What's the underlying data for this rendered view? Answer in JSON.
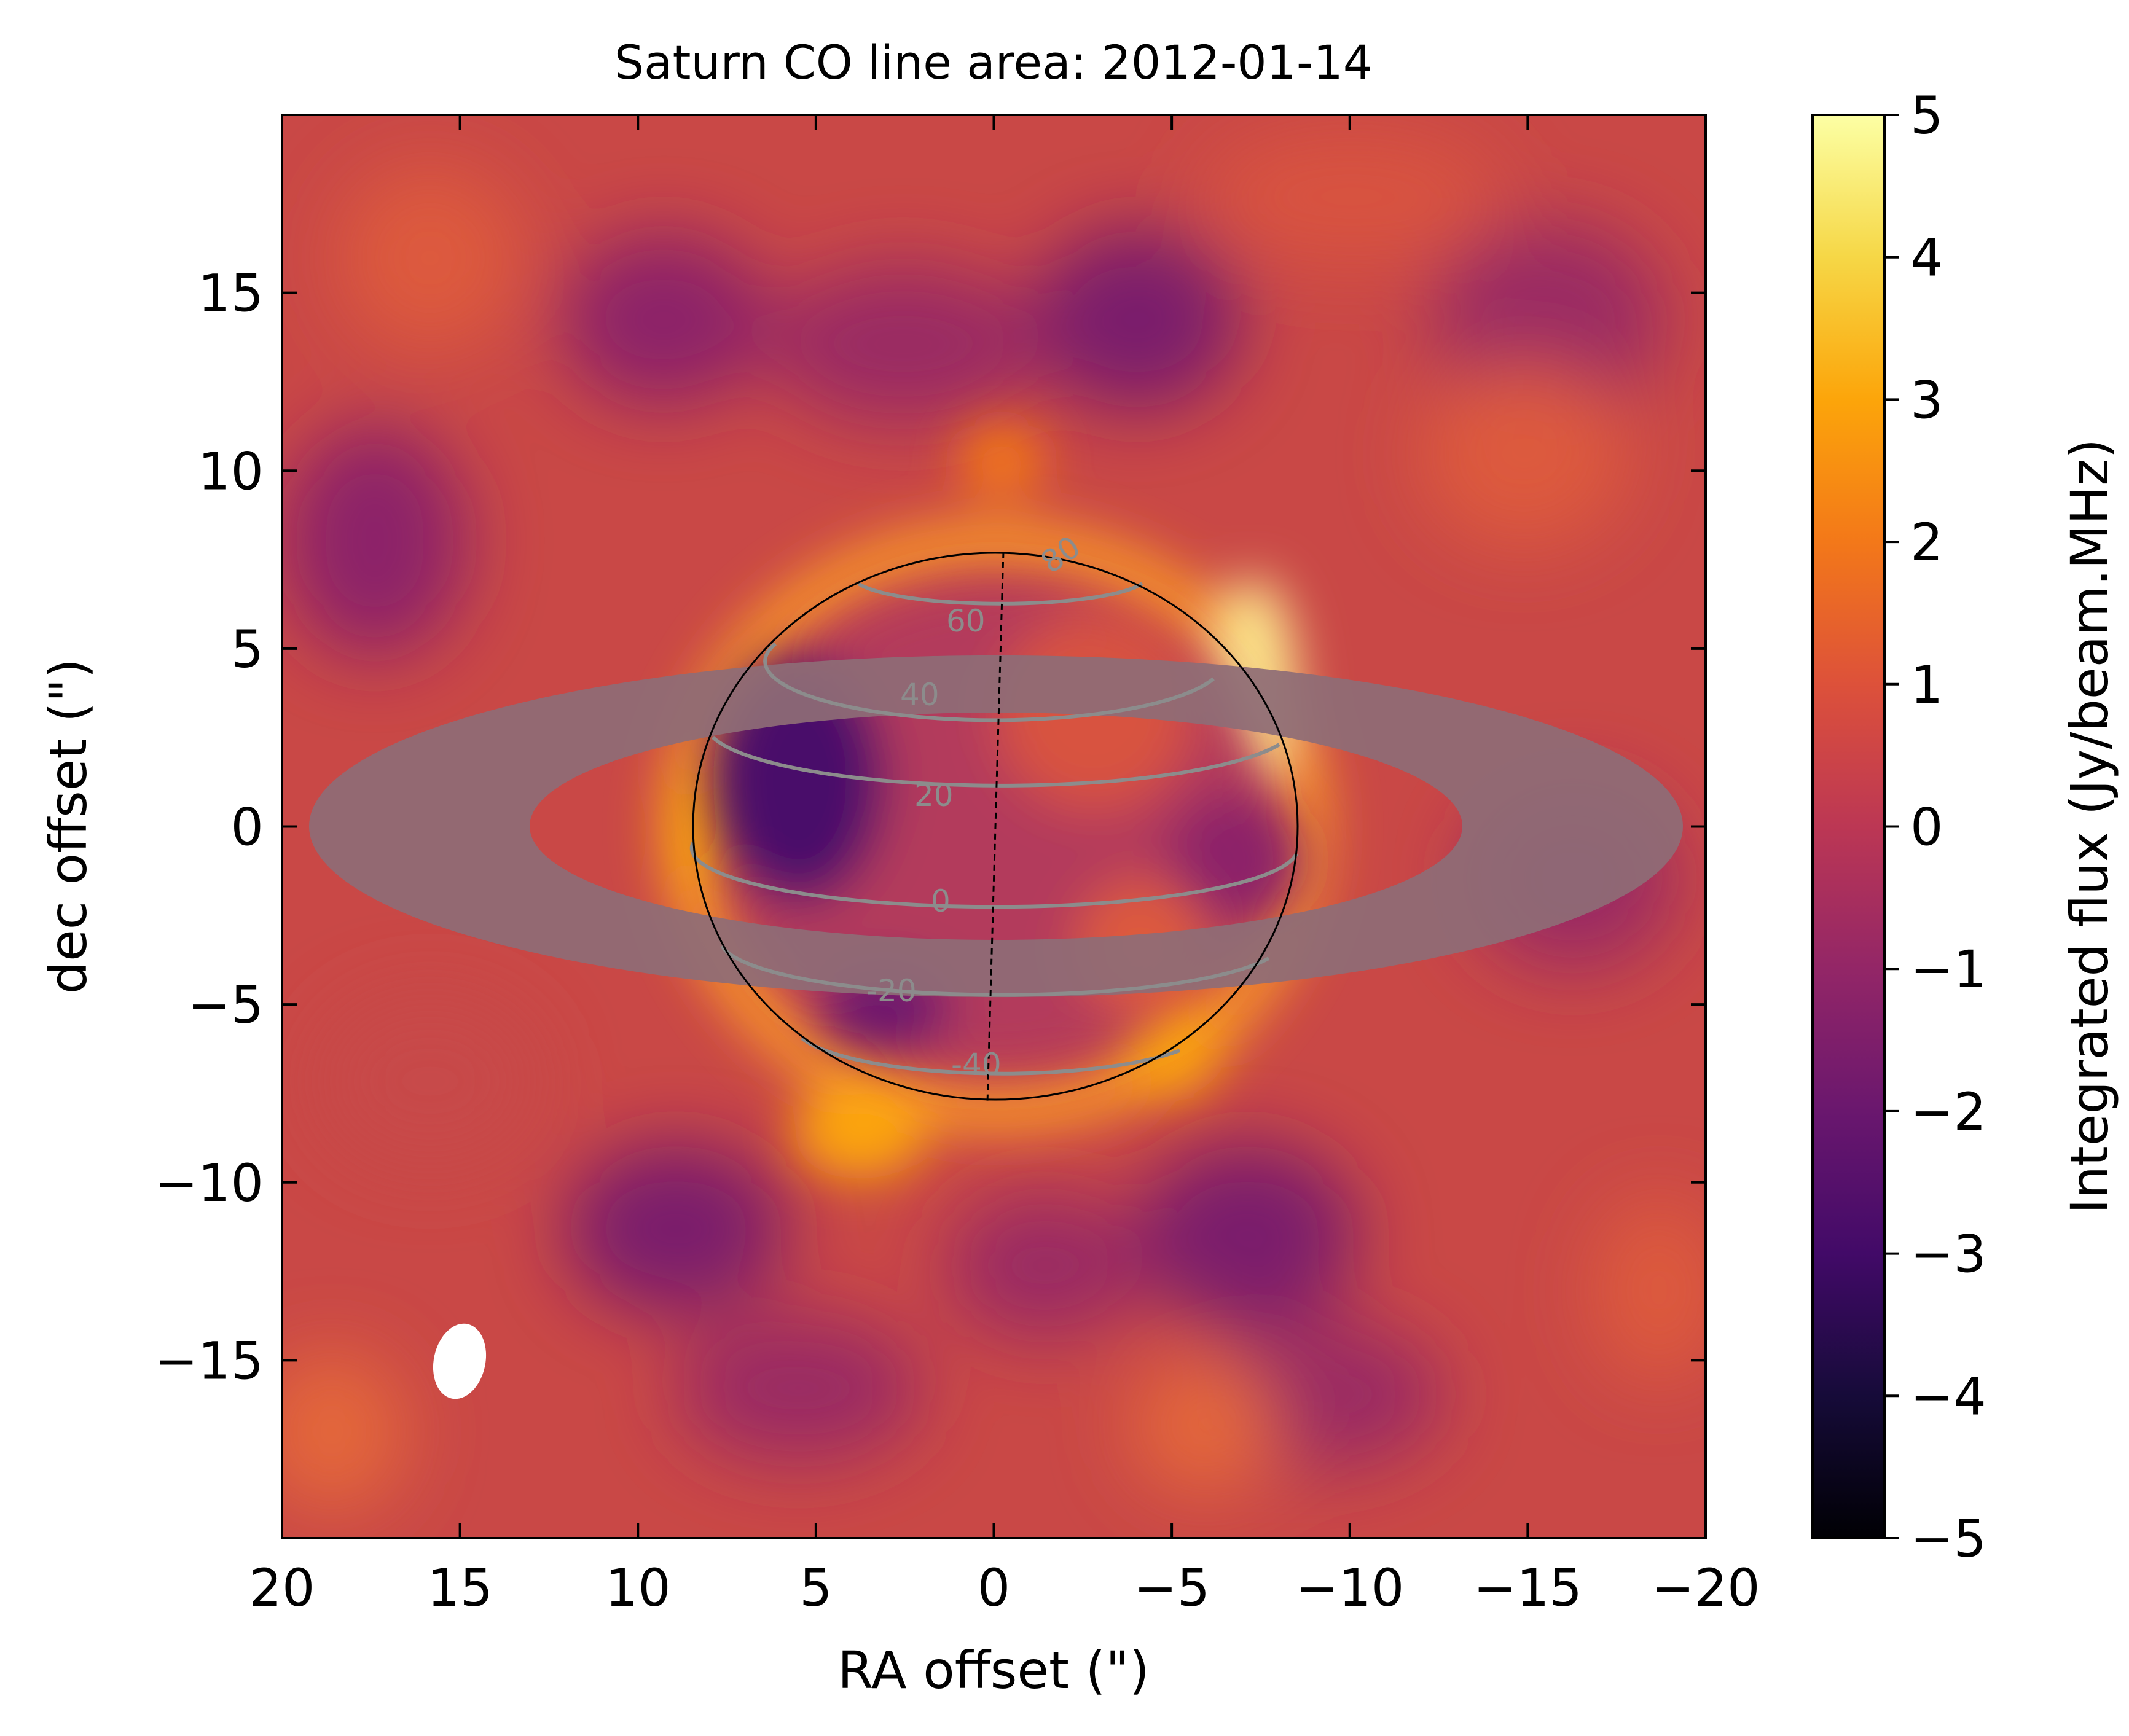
{
  "chart_data": {
    "type": "heatmap",
    "title": "Saturn CO line area: 2012-01-14",
    "xlabel": "RA offset (\")",
    "ylabel": "dec offset (\")",
    "xlim": [
      20,
      -20
    ],
    "ylim": [
      -20,
      20
    ],
    "x_ticks": [
      {
        "value": 20,
        "label": "20"
      },
      {
        "value": 15,
        "label": "15"
      },
      {
        "value": 10,
        "label": "10"
      },
      {
        "value": 5,
        "label": "5"
      },
      {
        "value": 0,
        "label": "0"
      },
      {
        "value": -5,
        "label": "−5"
      },
      {
        "value": -10,
        "label": "−10"
      },
      {
        "value": -15,
        "label": "−15"
      },
      {
        "value": -20,
        "label": "−20"
      }
    ],
    "y_ticks": [
      {
        "value": 15,
        "label": "15"
      },
      {
        "value": 10,
        "label": "10"
      },
      {
        "value": 5,
        "label": "5"
      },
      {
        "value": 0,
        "label": "0"
      },
      {
        "value": -5,
        "label": "−5"
      },
      {
        "value": -10,
        "label": "−10"
      },
      {
        "value": -15,
        "label": "−15"
      }
    ],
    "colorbar": {
      "label": "Integrated flux (Jy/beam.MHz)",
      "range": [
        -5,
        5
      ],
      "colormap": "inferno",
      "ticks": [
        {
          "value": 5,
          "label": "5"
        },
        {
          "value": 4,
          "label": "4"
        },
        {
          "value": 3,
          "label": "3"
        },
        {
          "value": 2,
          "label": "2"
        },
        {
          "value": 1,
          "label": "1"
        },
        {
          "value": 0,
          "label": "0"
        },
        {
          "value": -1,
          "label": "−1"
        },
        {
          "value": -2,
          "label": "−2"
        },
        {
          "value": -3,
          "label": "−3"
        },
        {
          "value": -4,
          "label": "−4"
        },
        {
          "value": -5,
          "label": "−5"
        }
      ]
    },
    "planet": {
      "center": [
        0,
        0
      ],
      "equatorial_radius": 8.5,
      "polar_radius": 7.7,
      "latitude_lines": [
        {
          "label": "80"
        },
        {
          "label": "60"
        },
        {
          "label": "40"
        },
        {
          "label": "20"
        },
        {
          "label": "0"
        },
        {
          "label": "-20"
        },
        {
          "label": "-40"
        }
      ],
      "ring": {
        "outer_semi_major": 19.3,
        "outer_semi_minor": 4.8,
        "inner_semi_major": 13.0,
        "inner_semi_minor": 3.2
      }
    },
    "beam": {
      "center": [
        15,
        -15
      ]
    },
    "colors": {
      "background_map": "#cf4d45",
      "ring": "#8e6c76",
      "latitude_lines": "#8c8c8c",
      "limb": "#000000",
      "beam": "#ffffff"
    }
  }
}
